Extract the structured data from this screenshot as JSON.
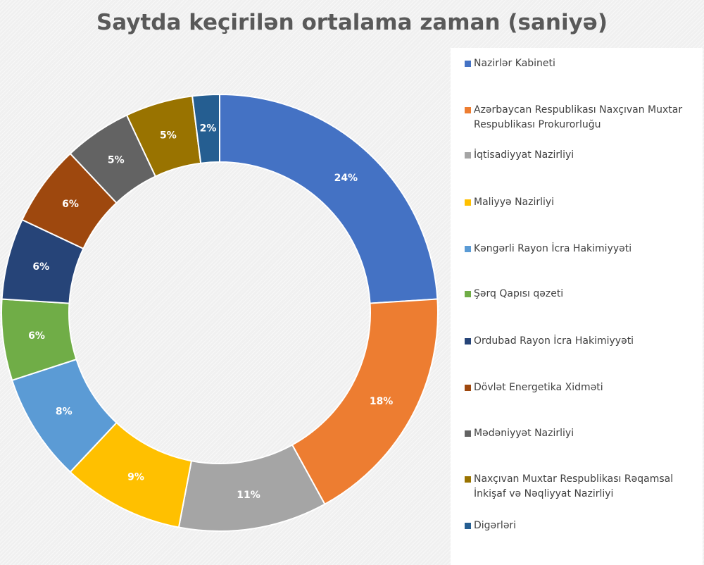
{
  "chart_data": {
    "type": "pie",
    "variant": "donut",
    "title": "Saytda keçirilən ortalama zaman (saniyə)",
    "legend_position": "right",
    "slices": [
      {
        "label": "Nazirlər Kabineti",
        "value": 24,
        "value_label": "24%",
        "color": "#4472c4"
      },
      {
        "label": "Azərbaycan Respublikası Naxçıvan Muxtar Respublikası Prokurorluğu",
        "value": 18,
        "value_label": "18%",
        "color": "#ed7d31"
      },
      {
        "label": "İqtisadiyyat Nazirliyi",
        "value": 11,
        "value_label": "11%",
        "color": "#a5a5a5"
      },
      {
        "label": "Maliyyə Nazirliyi",
        "value": 9,
        "value_label": "9%",
        "color": "#ffc000"
      },
      {
        "label": "Kəngərli Rayon İcra Hakimiyyəti",
        "value": 8,
        "value_label": "8%",
        "color": "#5b9bd5"
      },
      {
        "label": "Şərq Qapısı qəzeti",
        "value": 6,
        "value_label": "6%",
        "color": "#70ad47"
      },
      {
        "label": "Ordubad Rayon İcra Hakimiyyəti",
        "value": 6,
        "value_label": "6%",
        "color": "#264478"
      },
      {
        "label": "Dövlət Energetika Xidməti",
        "value": 6,
        "value_label": "6%",
        "color": "#9e480e"
      },
      {
        "label": "Mədəniyyət Nazirliyi",
        "value": 5,
        "value_label": "5%",
        "color": "#636363"
      },
      {
        "label": "Naxçıvan Muxtar Respublikası  Rəqamsal İnkişaf və Nəqliyyat Nazirliyi",
        "value": 5,
        "value_label": "5%",
        "color": "#997300"
      },
      {
        "label": "Digərləri",
        "value": 2,
        "value_label": "2%",
        "color": "#255e91"
      }
    ]
  }
}
